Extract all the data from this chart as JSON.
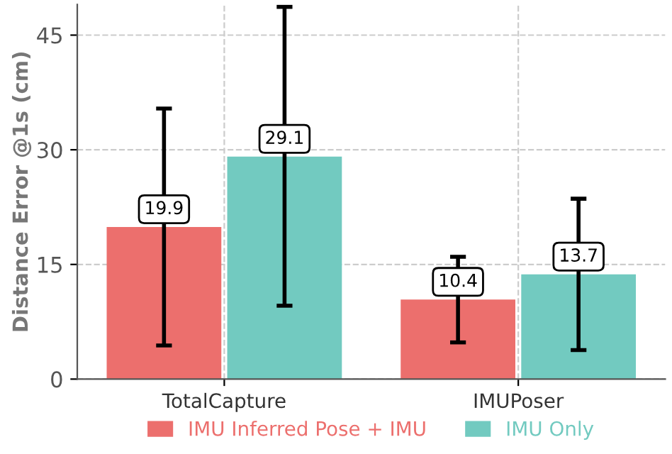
{
  "chart_data": {
    "type": "bar",
    "ylabel": "Distance Error @1s (cm)",
    "categories": [
      "TotalCapture",
      "IMUPoser"
    ],
    "series": [
      {
        "name": "IMU Inferred Pose + IMU",
        "color": "#ec6f6d",
        "values": [
          19.9,
          10.4
        ],
        "errors": [
          [
            4.4,
            35.4
          ],
          [
            4.8,
            16.0
          ]
        ]
      },
      {
        "name": "IMU Only",
        "color": "#72cac0",
        "values": [
          29.1,
          13.7
        ],
        "errors": [
          [
            9.6,
            48.7
          ],
          [
            3.8,
            23.6
          ]
        ]
      }
    ],
    "ylim": [
      0,
      49
    ],
    "yticks": [
      0,
      15,
      30,
      45
    ],
    "grid": true,
    "legend": "bottom",
    "data_labels": true
  }
}
